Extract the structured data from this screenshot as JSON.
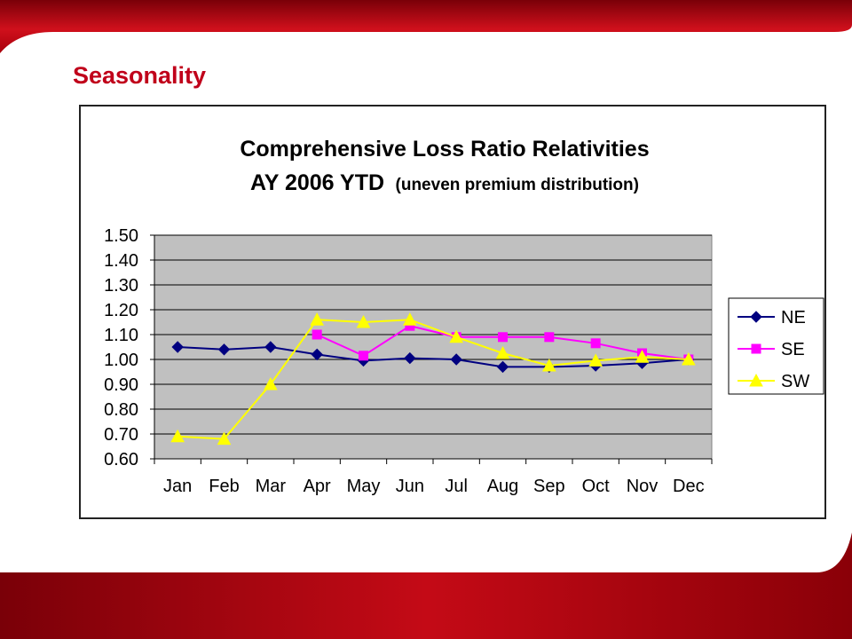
{
  "slide": {
    "title": "Seasonality"
  },
  "chart_data": {
    "type": "line",
    "title_line1": "Comprehensive Loss Ratio Relativities",
    "title_line2_main": "AY 2006 YTD",
    "title_line2_note": "(uneven premium distribution)",
    "xlabel": "",
    "ylabel": "",
    "categories": [
      "Jan",
      "Feb",
      "Mar",
      "Apr",
      "May",
      "Jun",
      "Jul",
      "Aug",
      "Sep",
      "Oct",
      "Nov",
      "Dec"
    ],
    "ylim": [
      0.6,
      1.5
    ],
    "yticks": [
      "1.50",
      "1.40",
      "1.30",
      "1.20",
      "1.10",
      "1.00",
      "0.90",
      "0.80",
      "0.70",
      "0.60"
    ],
    "grid": true,
    "plot_background": "#c0c0c0",
    "legend_position": "right",
    "series": [
      {
        "name": "NE",
        "color": "#000080",
        "marker": "diamond",
        "values": [
          1.05,
          1.04,
          1.05,
          1.02,
          0.995,
          1.005,
          1.0,
          0.97,
          0.97,
          0.975,
          0.985,
          1.0
        ]
      },
      {
        "name": "SE",
        "color": "#ff00ff",
        "marker": "square",
        "values": [
          null,
          null,
          null,
          1.1,
          1.015,
          1.135,
          1.09,
          1.09,
          1.09,
          1.065,
          1.025,
          1.0
        ]
      },
      {
        "name": "SW",
        "color": "#ffff00",
        "marker": "triangle",
        "values": [
          0.69,
          0.68,
          0.9,
          1.16,
          1.15,
          1.16,
          1.09,
          1.025,
          0.975,
          0.995,
          1.01,
          1.0
        ]
      }
    ]
  }
}
